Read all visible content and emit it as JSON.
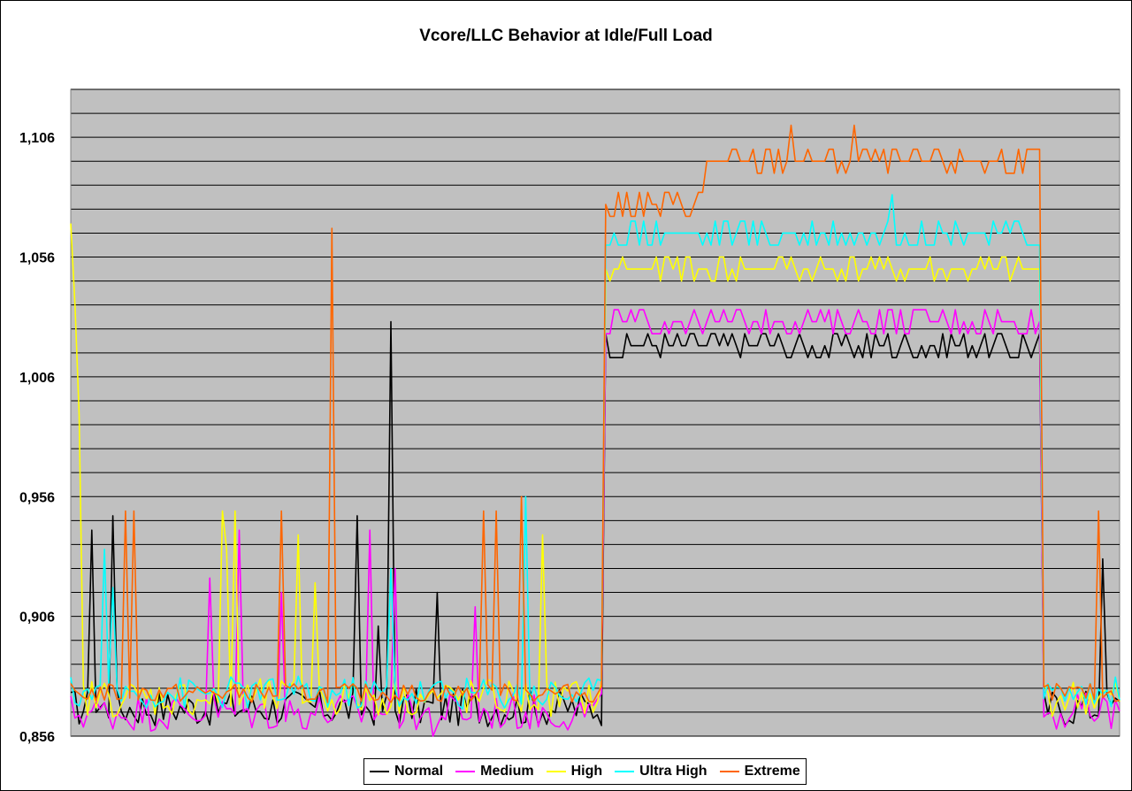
{
  "chart_data": {
    "type": "line",
    "title": "Vcore/LLC Behavior at Idle/Full Load",
    "xlabel": "",
    "ylabel": "",
    "ylim": [
      0.856,
      1.126
    ],
    "yticks": [
      "1,106",
      "1,056",
      "1,006",
      "0,956",
      "0,906",
      "0,856"
    ],
    "ytick_values": [
      1.106,
      1.056,
      1.006,
      0.956,
      0.906,
      0.856
    ],
    "grid_step": 0.01,
    "x_count": 250,
    "background": "#c0c0c0",
    "legend_position": "bottom",
    "series": [
      {
        "name": "Normal",
        "color": "#000000",
        "idle": 0.868,
        "load": 1.019,
        "idle_amp": 0.008,
        "load_amp": 0.007,
        "spikes": [
          [
            5,
            0.942
          ],
          [
            10,
            0.948
          ],
          [
            68,
            0.948
          ],
          [
            73,
            0.902
          ],
          [
            76,
            1.029
          ],
          [
            87,
            0.916
          ],
          [
            245,
            0.93
          ]
        ]
      },
      {
        "name": "Medium",
        "color": "#ff00ff",
        "idle": 0.866,
        "load": 1.029,
        "idle_amp": 0.008,
        "load_amp": 0.005,
        "spikes": [
          [
            33,
            0.922
          ],
          [
            40,
            0.942
          ],
          [
            50,
            0.916
          ],
          [
            71,
            0.942
          ],
          [
            77,
            0.926
          ],
          [
            86,
            0.856
          ],
          [
            96,
            0.91
          ]
        ]
      },
      {
        "name": "High",
        "color": "#ffff00",
        "idle": 0.872,
        "load": 1.051,
        "idle_amp": 0.008,
        "load_amp": 0.005,
        "spikes": [
          [
            0,
            1.07
          ],
          [
            1,
            1.036
          ],
          [
            2,
            0.99
          ],
          [
            36,
            0.95
          ],
          [
            39,
            0.95
          ],
          [
            37,
            0.934
          ],
          [
            54,
            0.94
          ],
          [
            58,
            0.92
          ],
          [
            112,
            0.94
          ]
        ]
      },
      {
        "name": "Ultra High",
        "color": "#00ffff",
        "idle": 0.874,
        "load": 1.066,
        "idle_amp": 0.007,
        "load_amp": 0.006,
        "spikes": [
          [
            8,
            0.934
          ],
          [
            10,
            0.918
          ],
          [
            76,
            0.926
          ],
          [
            108,
            0.956
          ],
          [
            195,
            1.082
          ]
        ]
      },
      {
        "name": "Extreme",
        "color": "#ff6600",
        "idle": 0.874,
        "load": 1.096,
        "idle_amp": 0.004,
        "load_amp": 0.006,
        "spikes": [
          [
            13,
            0.95
          ],
          [
            15,
            0.95
          ],
          [
            50,
            0.95
          ],
          [
            62,
            1.068
          ],
          [
            98,
            0.95
          ],
          [
            101,
            0.95
          ],
          [
            107,
            0.956
          ],
          [
            171,
            1.111
          ],
          [
            186,
            1.111
          ],
          [
            244,
            0.95
          ]
        ]
      }
    ]
  },
  "legend": {
    "items": [
      {
        "label": "Normal",
        "color": "#000000"
      },
      {
        "label": "Medium",
        "color": "#ff00ff"
      },
      {
        "label": "High",
        "color": "#ffff00"
      },
      {
        "label": "Ultra High",
        "color": "#00ffff"
      },
      {
        "label": "Extreme",
        "color": "#ff6600"
      }
    ]
  }
}
